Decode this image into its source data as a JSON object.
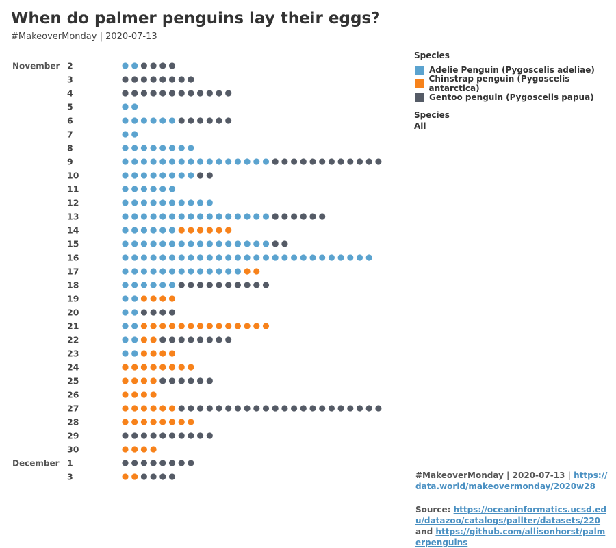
{
  "header": {
    "title": "When do palmer penguins lay their eggs?",
    "subtitle": "#MakeoverMonday | 2020-07-13"
  },
  "legend": {
    "title": "Species",
    "items": [
      {
        "key": "adelie",
        "label": "Adelie Penguin (Pygoscelis adeliae)",
        "color": "#5ba3cf"
      },
      {
        "key": "chinstrap",
        "label": "Chinstrap penguin (Pygoscelis antarctica)",
        "color": "#f7821b"
      },
      {
        "key": "gentoo",
        "label": "Gentoo penguin (Pygoscelis papua)",
        "color": "#555b66"
      }
    ]
  },
  "filter": {
    "title": "Species",
    "value": "All"
  },
  "footer": {
    "line1_prefix": "#MakeoverMonday | 2020-07-13 | ",
    "line1_link": "https://data.world/makeovermonday/2020w28",
    "source_prefix": "Source: ",
    "source_link1": "https://oceaninformatics.ucsd.edu/datazoo/catalogs/pallter/datasets/220",
    "source_and": " and ",
    "source_link2": "https://github.com/allisonhorst/palmerpenguins"
  },
  "chart_data": {
    "type": "dot-strip",
    "month_labels": [
      "November",
      "December"
    ],
    "series": [
      {
        "key": "adelie",
        "name": "Adelie Penguin (Pygoscelis adeliae)",
        "color": "#5ba3cf"
      },
      {
        "key": "chinstrap",
        "name": "Chinstrap penguin (Pygoscelis antarctica)",
        "color": "#f7821b"
      },
      {
        "key": "gentoo",
        "name": "Gentoo penguin (Pygoscelis papua)",
        "color": "#555b66"
      }
    ],
    "rows": [
      {
        "month": "November",
        "day": "2",
        "adelie": 2,
        "chinstrap": 0,
        "gentoo": 4
      },
      {
        "month": "November",
        "day": "3",
        "adelie": 0,
        "chinstrap": 0,
        "gentoo": 8
      },
      {
        "month": "November",
        "day": "4",
        "adelie": 0,
        "chinstrap": 0,
        "gentoo": 12
      },
      {
        "month": "November",
        "day": "5",
        "adelie": 2,
        "chinstrap": 0,
        "gentoo": 0
      },
      {
        "month": "November",
        "day": "6",
        "adelie": 6,
        "chinstrap": 0,
        "gentoo": 6
      },
      {
        "month": "November",
        "day": "7",
        "adelie": 2,
        "chinstrap": 0,
        "gentoo": 0
      },
      {
        "month": "November",
        "day": "8",
        "adelie": 8,
        "chinstrap": 0,
        "gentoo": 0
      },
      {
        "month": "November",
        "day": "9",
        "adelie": 16,
        "chinstrap": 0,
        "gentoo": 12
      },
      {
        "month": "November",
        "day": "10",
        "adelie": 8,
        "chinstrap": 0,
        "gentoo": 2
      },
      {
        "month": "November",
        "day": "11",
        "adelie": 6,
        "chinstrap": 0,
        "gentoo": 0
      },
      {
        "month": "November",
        "day": "12",
        "adelie": 10,
        "chinstrap": 0,
        "gentoo": 0
      },
      {
        "month": "November",
        "day": "13",
        "adelie": 16,
        "chinstrap": 0,
        "gentoo": 6
      },
      {
        "month": "November",
        "day": "14",
        "adelie": 6,
        "chinstrap": 6,
        "gentoo": 0
      },
      {
        "month": "November",
        "day": "15",
        "adelie": 16,
        "chinstrap": 0,
        "gentoo": 2
      },
      {
        "month": "November",
        "day": "16",
        "adelie": 27,
        "chinstrap": 0,
        "gentoo": 0
      },
      {
        "month": "November",
        "day": "17",
        "adelie": 13,
        "chinstrap": 2,
        "gentoo": 0
      },
      {
        "month": "November",
        "day": "18",
        "adelie": 6,
        "chinstrap": 0,
        "gentoo": 10
      },
      {
        "month": "November",
        "day": "19",
        "adelie": 2,
        "chinstrap": 4,
        "gentoo": 0
      },
      {
        "month": "November",
        "day": "20",
        "adelie": 2,
        "chinstrap": 0,
        "gentoo": 4
      },
      {
        "month": "November",
        "day": "21",
        "adelie": 2,
        "chinstrap": 14,
        "gentoo": 0
      },
      {
        "month": "November",
        "day": "22",
        "adelie": 2,
        "chinstrap": 2,
        "gentoo": 8
      },
      {
        "month": "November",
        "day": "23",
        "adelie": 2,
        "chinstrap": 4,
        "gentoo": 0
      },
      {
        "month": "November",
        "day": "24",
        "adelie": 0,
        "chinstrap": 8,
        "gentoo": 0
      },
      {
        "month": "November",
        "day": "25",
        "adelie": 0,
        "chinstrap": 4,
        "gentoo": 6
      },
      {
        "month": "November",
        "day": "26",
        "adelie": 0,
        "chinstrap": 4,
        "gentoo": 0
      },
      {
        "month": "November",
        "day": "27",
        "adelie": 0,
        "chinstrap": 6,
        "gentoo": 22
      },
      {
        "month": "November",
        "day": "28",
        "adelie": 0,
        "chinstrap": 8,
        "gentoo": 0
      },
      {
        "month": "November",
        "day": "29",
        "adelie": 0,
        "chinstrap": 0,
        "gentoo": 10
      },
      {
        "month": "November",
        "day": "30",
        "adelie": 0,
        "chinstrap": 4,
        "gentoo": 0
      },
      {
        "month": "December",
        "day": "1",
        "adelie": 0,
        "chinstrap": 0,
        "gentoo": 8
      },
      {
        "month": "December",
        "day": "3",
        "adelie": 0,
        "chinstrap": 2,
        "gentoo": 4
      }
    ]
  }
}
